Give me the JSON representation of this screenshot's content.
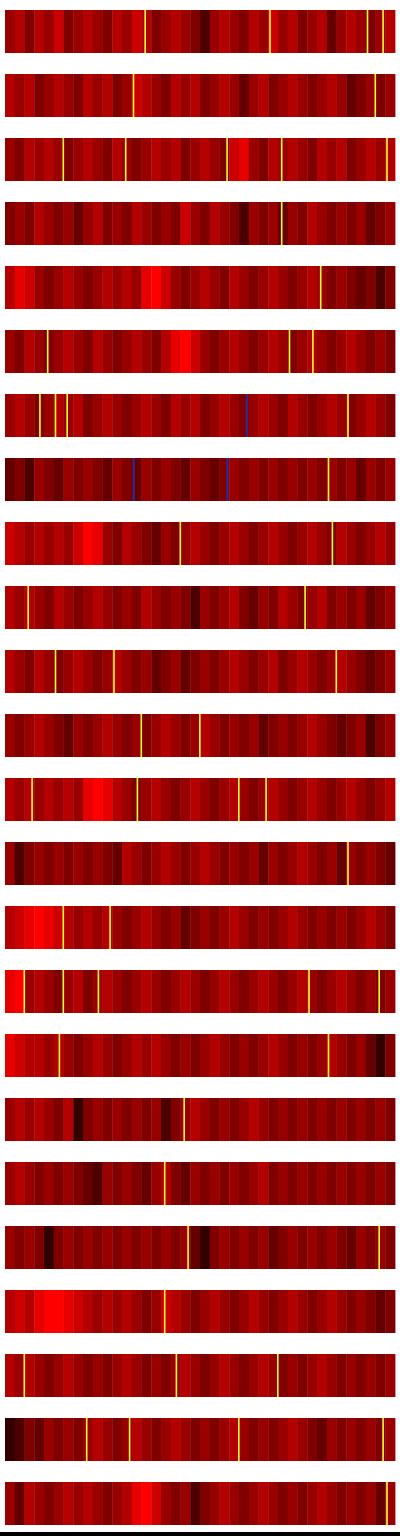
{
  "chart_data": {
    "type": "heatmap",
    "xlim": [
      0,
      1
    ],
    "color_range": [
      0,
      1
    ],
    "color_scale": [
      "#000000",
      "#ff0000"
    ],
    "highlight_color": "#ffff33",
    "mark_color": "#2a2aa0",
    "tick_labels": false,
    "strips": [
      {
        "values": [
          0.6,
          0.7,
          0.5,
          0.7,
          0.6,
          0.8,
          0.5,
          0.6,
          0.7,
          0.6,
          0.5,
          0.7,
          0.6,
          0.8,
          0.7,
          0.5,
          0.6,
          0.7,
          0.6,
          0.5,
          0.3,
          0.6,
          0.7,
          0.6,
          0.5,
          0.7,
          0.6,
          0.8,
          0.6,
          0.7,
          0.5,
          0.6,
          0.7,
          0.4,
          0.6,
          0.7,
          0.6,
          0.5,
          0.6,
          0.7
        ],
        "highlights": [
          0.36,
          0.68,
          0.93,
          0.97
        ]
      },
      {
        "values": [
          0.7,
          0.6,
          0.7,
          0.5,
          0.6,
          0.7,
          0.6,
          0.5,
          0.7,
          0.6,
          0.7,
          0.5,
          0.6,
          0.8,
          0.7,
          0.6,
          0.5,
          0.7,
          0.6,
          0.7,
          0.5,
          0.6,
          0.7,
          0.6,
          0.4,
          0.6,
          0.7,
          0.5,
          0.6,
          0.7,
          0.6,
          0.5,
          0.6,
          0.7,
          0.6,
          0.4,
          0.5,
          0.6,
          0.5,
          0.6
        ],
        "highlights": [
          0.33,
          0.95
        ]
      },
      {
        "values": [
          0.6,
          0.5,
          0.7,
          0.6,
          0.7,
          0.6,
          0.5,
          0.6,
          0.7,
          0.6,
          0.5,
          0.7,
          0.6,
          0.5,
          0.6,
          0.7,
          0.6,
          0.7,
          0.5,
          0.6,
          0.7,
          0.6,
          0.5,
          0.8,
          0.9,
          0.6,
          0.5,
          0.7,
          0.6,
          0.7,
          0.6,
          0.5,
          0.7,
          0.6,
          0.7,
          0.5,
          0.6,
          0.7,
          0.6,
          0.7
        ],
        "highlights": [
          0.15,
          0.31,
          0.57,
          0.71,
          0.98
        ]
      },
      {
        "values": [
          0.5,
          0.6,
          0.5,
          0.7,
          0.6,
          0.5,
          0.6,
          0.4,
          0.6,
          0.7,
          0.5,
          0.6,
          0.5,
          0.7,
          0.6,
          0.5,
          0.6,
          0.5,
          0.8,
          0.6,
          0.5,
          0.7,
          0.6,
          0.5,
          0.3,
          0.6,
          0.5,
          0.6,
          0.4,
          0.6,
          0.5,
          0.7,
          0.6,
          0.5,
          0.6,
          0.5,
          0.6,
          0.4,
          0.5,
          0.6
        ],
        "highlights": [
          0.71
        ]
      },
      {
        "values": [
          0.7,
          0.9,
          0.8,
          0.6,
          0.5,
          0.6,
          0.7,
          0.6,
          0.5,
          0.6,
          0.7,
          0.6,
          0.7,
          0.6,
          0.9,
          1.0,
          0.8,
          0.6,
          0.5,
          0.6,
          0.7,
          0.6,
          0.5,
          0.7,
          0.6,
          0.5,
          0.6,
          0.7,
          0.6,
          0.5,
          0.6,
          0.7,
          0.6,
          0.5,
          0.6,
          0.5,
          0.4,
          0.5,
          0.3,
          0.5
        ],
        "highlights": [
          0.81
        ]
      },
      {
        "values": [
          0.6,
          0.5,
          0.7,
          0.6,
          0.5,
          0.6,
          0.7,
          0.6,
          0.5,
          0.7,
          0.6,
          0.5,
          0.6,
          0.7,
          0.6,
          0.5,
          0.7,
          0.9,
          1.0,
          0.8,
          0.6,
          0.5,
          0.6,
          0.7,
          0.6,
          0.5,
          0.6,
          0.7,
          0.6,
          0.5,
          0.6,
          0.7,
          0.6,
          0.5,
          0.6,
          0.7,
          0.6,
          0.5,
          0.6,
          0.5
        ],
        "highlights": [
          0.11,
          0.73,
          0.79
        ]
      },
      {
        "values": [
          0.6,
          0.7,
          0.6,
          0.5,
          0.6,
          0.7,
          0.6,
          0.7,
          0.5,
          0.6,
          0.7,
          0.6,
          0.5,
          0.6,
          0.7,
          0.6,
          0.5,
          0.7,
          0.6,
          0.7,
          0.5,
          0.6,
          0.7,
          0.6,
          0.5,
          0.6,
          0.7,
          0.6,
          0.5,
          0.7,
          0.6,
          0.5,
          0.6,
          0.7,
          0.6,
          0.5,
          0.6,
          0.7,
          0.6,
          0.5
        ],
        "highlights": [
          0.09,
          0.13,
          0.16,
          0.88
        ],
        "marks": [
          0.62
        ]
      },
      {
        "values": [
          0.4,
          0.5,
          0.3,
          0.6,
          0.5,
          0.4,
          0.6,
          0.5,
          0.6,
          0.5,
          0.4,
          0.6,
          0.5,
          0.4,
          0.6,
          0.5,
          0.6,
          0.5,
          0.4,
          0.6,
          0.5,
          0.4,
          0.5,
          0.6,
          0.5,
          0.6,
          0.5,
          0.6,
          0.5,
          0.6,
          0.5,
          0.6,
          0.5,
          0.6,
          0.5,
          0.6,
          0.4,
          0.6,
          0.5,
          0.6
        ],
        "highlights": [
          0.83
        ],
        "marks": [
          0.33,
          0.57
        ]
      },
      {
        "values": [
          0.8,
          0.7,
          0.6,
          0.7,
          0.6,
          0.7,
          0.6,
          0.8,
          1.0,
          0.9,
          0.6,
          0.5,
          0.7,
          0.6,
          0.5,
          0.4,
          0.6,
          0.5,
          0.6,
          0.7,
          0.6,
          0.5,
          0.6,
          0.7,
          0.6,
          0.5,
          0.6,
          0.7,
          0.6,
          0.5,
          0.6,
          0.7,
          0.6,
          0.5,
          0.7,
          0.6,
          0.5,
          0.6,
          0.7,
          0.6
        ],
        "highlights": [
          0.45,
          0.84
        ]
      },
      {
        "values": [
          0.7,
          0.6,
          0.7,
          0.6,
          0.5,
          0.7,
          0.6,
          0.5,
          0.6,
          0.7,
          0.6,
          0.5,
          0.6,
          0.5,
          0.7,
          0.6,
          0.5,
          0.6,
          0.5,
          0.3,
          0.6,
          0.5,
          0.6,
          0.7,
          0.5,
          0.4,
          0.6,
          0.5,
          0.7,
          0.6,
          0.5,
          0.6,
          0.7,
          0.5,
          0.6,
          0.5,
          0.6,
          0.4,
          0.5,
          0.6
        ],
        "highlights": [
          0.06,
          0.77
        ]
      },
      {
        "values": [
          0.7,
          0.6,
          0.5,
          0.7,
          0.6,
          0.5,
          0.6,
          0.7,
          0.6,
          0.5,
          0.6,
          0.7,
          0.6,
          0.5,
          0.6,
          0.4,
          0.5,
          0.6,
          0.4,
          0.5,
          0.6,
          0.5,
          0.6,
          0.7,
          0.6,
          0.5,
          0.6,
          0.7,
          0.5,
          0.6,
          0.7,
          0.6,
          0.5,
          0.6,
          0.7,
          0.6,
          0.5,
          0.4,
          0.5,
          0.6
        ],
        "highlights": [
          0.13,
          0.28,
          0.85
        ]
      },
      {
        "values": [
          0.6,
          0.5,
          0.6,
          0.7,
          0.6,
          0.5,
          0.4,
          0.6,
          0.5,
          0.6,
          0.7,
          0.6,
          0.5,
          0.6,
          0.5,
          0.6,
          0.7,
          0.6,
          0.5,
          0.6,
          0.7,
          0.6,
          0.5,
          0.6,
          0.5,
          0.6,
          0.4,
          0.5,
          0.6,
          0.5,
          0.6,
          0.7,
          0.6,
          0.5,
          0.4,
          0.5,
          0.6,
          0.3,
          0.5,
          0.6
        ],
        "highlights": [
          0.35,
          0.5
        ]
      },
      {
        "values": [
          0.7,
          0.6,
          0.7,
          0.6,
          0.7,
          0.6,
          0.7,
          0.6,
          0.9,
          1.0,
          0.9,
          0.7,
          0.6,
          0.5,
          0.6,
          0.7,
          0.6,
          0.5,
          0.6,
          0.7,
          0.6,
          0.5,
          0.6,
          0.7,
          0.6,
          0.5,
          0.6,
          0.7,
          0.6,
          0.5,
          0.6,
          0.7,
          0.6,
          0.5,
          0.6,
          0.7,
          0.6,
          0.5,
          0.6,
          0.7
        ],
        "highlights": [
          0.07,
          0.34,
          0.6,
          0.67
        ]
      },
      {
        "values": [
          0.6,
          0.3,
          0.5,
          0.6,
          0.5,
          0.6,
          0.5,
          0.6,
          0.5,
          0.6,
          0.5,
          0.4,
          0.7,
          0.6,
          0.5,
          0.6,
          0.7,
          0.6,
          0.5,
          0.6,
          0.7,
          0.6,
          0.5,
          0.6,
          0.5,
          0.6,
          0.4,
          0.6,
          0.5,
          0.6,
          0.7,
          0.6,
          0.5,
          0.6,
          0.4,
          0.6,
          0.5,
          0.6,
          0.5,
          0.4
        ],
        "highlights": [
          0.88
        ]
      },
      {
        "values": [
          0.7,
          0.8,
          0.9,
          1.0,
          0.9,
          0.8,
          0.7,
          0.6,
          0.7,
          0.6,
          0.7,
          0.6,
          0.5,
          0.6,
          0.7,
          0.6,
          0.5,
          0.6,
          0.4,
          0.5,
          0.6,
          0.5,
          0.6,
          0.7,
          0.6,
          0.5,
          0.6,
          0.5,
          0.6,
          0.7,
          0.6,
          0.5,
          0.6,
          0.5,
          0.6,
          0.5,
          0.6,
          0.7,
          0.6,
          0.5
        ],
        "highlights": [
          0.15,
          0.27
        ]
      },
      {
        "values": [
          0.9,
          1.0,
          0.6,
          0.7,
          0.6,
          0.5,
          0.6,
          0.7,
          0.5,
          0.6,
          0.7,
          0.6,
          0.5,
          0.6,
          0.7,
          0.6,
          0.5,
          0.6,
          0.7,
          0.6,
          0.5,
          0.6,
          0.7,
          0.6,
          0.5,
          0.6,
          0.7,
          0.6,
          0.5,
          0.6,
          0.7,
          0.6,
          0.5,
          0.6,
          0.7,
          0.6,
          0.5,
          0.6,
          0.5,
          0.6
        ],
        "highlights": [
          0.05,
          0.15,
          0.24,
          0.78,
          0.96
        ]
      },
      {
        "values": [
          0.9,
          0.8,
          0.7,
          0.7,
          0.6,
          0.7,
          0.6,
          0.5,
          0.6,
          0.7,
          0.6,
          0.5,
          0.6,
          0.7,
          0.6,
          0.7,
          0.6,
          0.5,
          0.6,
          0.5,
          0.6,
          0.7,
          0.6,
          0.5,
          0.6,
          0.5,
          0.6,
          0.7,
          0.6,
          0.5,
          0.6,
          0.5,
          0.6,
          0.7,
          0.6,
          0.5,
          0.6,
          0.4,
          0.2,
          0.5
        ],
        "highlights": [
          0.14,
          0.83
        ]
      },
      {
        "values": [
          0.6,
          0.7,
          0.6,
          0.7,
          0.6,
          0.5,
          0.7,
          0.2,
          0.5,
          0.6,
          0.5,
          0.6,
          0.5,
          0.6,
          0.5,
          0.6,
          0.3,
          0.5,
          0.6,
          0.7,
          0.6,
          0.5,
          0.6,
          0.5,
          0.6,
          0.7,
          0.6,
          0.5,
          0.6,
          0.5,
          0.6,
          0.5,
          0.6,
          0.5,
          0.6,
          0.5,
          0.6,
          0.5,
          0.6,
          0.5
        ],
        "highlights": [
          0.46
        ]
      },
      {
        "values": [
          0.6,
          0.7,
          0.6,
          0.5,
          0.6,
          0.5,
          0.6,
          0.5,
          0.4,
          0.3,
          0.6,
          0.5,
          0.6,
          0.5,
          0.4,
          0.6,
          0.7,
          0.5,
          0.4,
          0.6,
          0.5,
          0.6,
          0.5,
          0.6,
          0.5,
          0.6,
          0.7,
          0.5,
          0.6,
          0.5,
          0.6,
          0.5,
          0.6,
          0.5,
          0.6,
          0.5,
          0.6,
          0.5,
          0.6,
          0.5
        ],
        "highlights": [
          0.41
        ]
      },
      {
        "values": [
          0.6,
          0.5,
          0.6,
          0.5,
          0.2,
          0.5,
          0.6,
          0.5,
          0.6,
          0.5,
          0.6,
          0.5,
          0.6,
          0.5,
          0.6,
          0.5,
          0.6,
          0.5,
          0.6,
          0.4,
          0.2,
          0.5,
          0.6,
          0.5,
          0.6,
          0.5,
          0.6,
          0.4,
          0.5,
          0.6,
          0.5,
          0.6,
          0.5,
          0.6,
          0.5,
          0.4,
          0.6,
          0.5,
          0.6,
          0.5
        ],
        "highlights": [
          0.47,
          0.96
        ]
      },
      {
        "values": [
          0.7,
          0.8,
          0.7,
          0.9,
          1.0,
          1.0,
          0.9,
          0.8,
          0.7,
          0.6,
          0.7,
          0.6,
          0.7,
          0.6,
          0.5,
          0.6,
          0.8,
          0.7,
          0.6,
          0.5,
          0.6,
          0.7,
          0.6,
          0.5,
          0.6,
          0.7,
          0.6,
          0.5,
          0.6,
          0.7,
          0.6,
          0.5,
          0.6,
          0.7,
          0.6,
          0.5,
          0.6,
          0.5,
          0.4,
          0.5
        ],
        "highlights": [
          0.41
        ]
      },
      {
        "values": [
          0.7,
          0.6,
          0.7,
          0.6,
          0.5,
          0.6,
          0.7,
          0.6,
          0.5,
          0.6,
          0.5,
          0.6,
          0.7,
          0.6,
          0.5,
          0.6,
          0.5,
          0.6,
          0.7,
          0.6,
          0.5,
          0.6,
          0.7,
          0.6,
          0.5,
          0.6,
          0.7,
          0.6,
          0.5,
          0.6,
          0.5,
          0.6,
          0.7,
          0.6,
          0.5,
          0.6,
          0.5,
          0.6,
          0.5,
          0.6
        ],
        "highlights": [
          0.05,
          0.44,
          0.7
        ]
      },
      {
        "values": [
          0.2,
          0.3,
          0.5,
          0.4,
          0.6,
          0.5,
          0.6,
          0.5,
          0.6,
          0.7,
          0.6,
          0.5,
          0.6,
          0.7,
          0.6,
          0.5,
          0.6,
          0.7,
          0.6,
          0.5,
          0.6,
          0.5,
          0.6,
          0.7,
          0.6,
          0.5,
          0.6,
          0.5,
          0.6,
          0.7,
          0.6,
          0.5,
          0.4,
          0.6,
          0.5,
          0.6,
          0.5,
          0.6,
          0.5,
          0.6
        ],
        "highlights": [
          0.21,
          0.32,
          0.6,
          0.97
        ]
      },
      {
        "values": [
          0.6,
          0.4,
          0.7,
          0.6,
          0.5,
          0.6,
          0.7,
          0.6,
          0.7,
          0.6,
          0.5,
          0.6,
          0.7,
          0.9,
          1.0,
          0.8,
          0.6,
          0.5,
          0.6,
          0.3,
          0.5,
          0.6,
          0.7,
          0.6,
          0.5,
          0.6,
          0.7,
          0.6,
          0.5,
          0.6,
          0.5,
          0.6,
          0.7,
          0.6,
          0.5,
          0.6,
          0.5,
          0.6,
          0.4,
          0.6
        ],
        "highlights": [
          0.98
        ]
      }
    ]
  }
}
